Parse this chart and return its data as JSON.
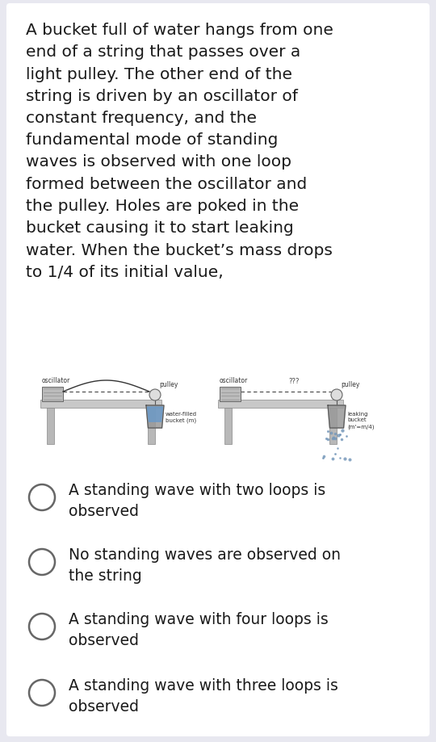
{
  "background_color": "#e8e8f0",
  "card_color": "#ffffff",
  "text_color": "#1a1a1a",
  "question_text": "A bucket full of water hangs from one\nend of a string that passes over a\nlight pulley. The other end of the\nstring is driven by an oscillator of\nconstant frequency, and the\nfundamental mode of standing\nwaves is observed with one loop\nformed between the oscillator and\nthe pulley. Holes are poked in the\nbucket causing it to start leaking\nwater. When the bucket’s mass drops\nto 1/4 of its initial value,",
  "options": [
    "A standing wave with two loops is\nobserved",
    "No standing waves are observed on\nthe string",
    "A standing wave with four loops is\nobserved",
    "A standing wave with three loops is\nobserved"
  ],
  "option_fontsize": 13.5,
  "question_fontsize": 14.5
}
